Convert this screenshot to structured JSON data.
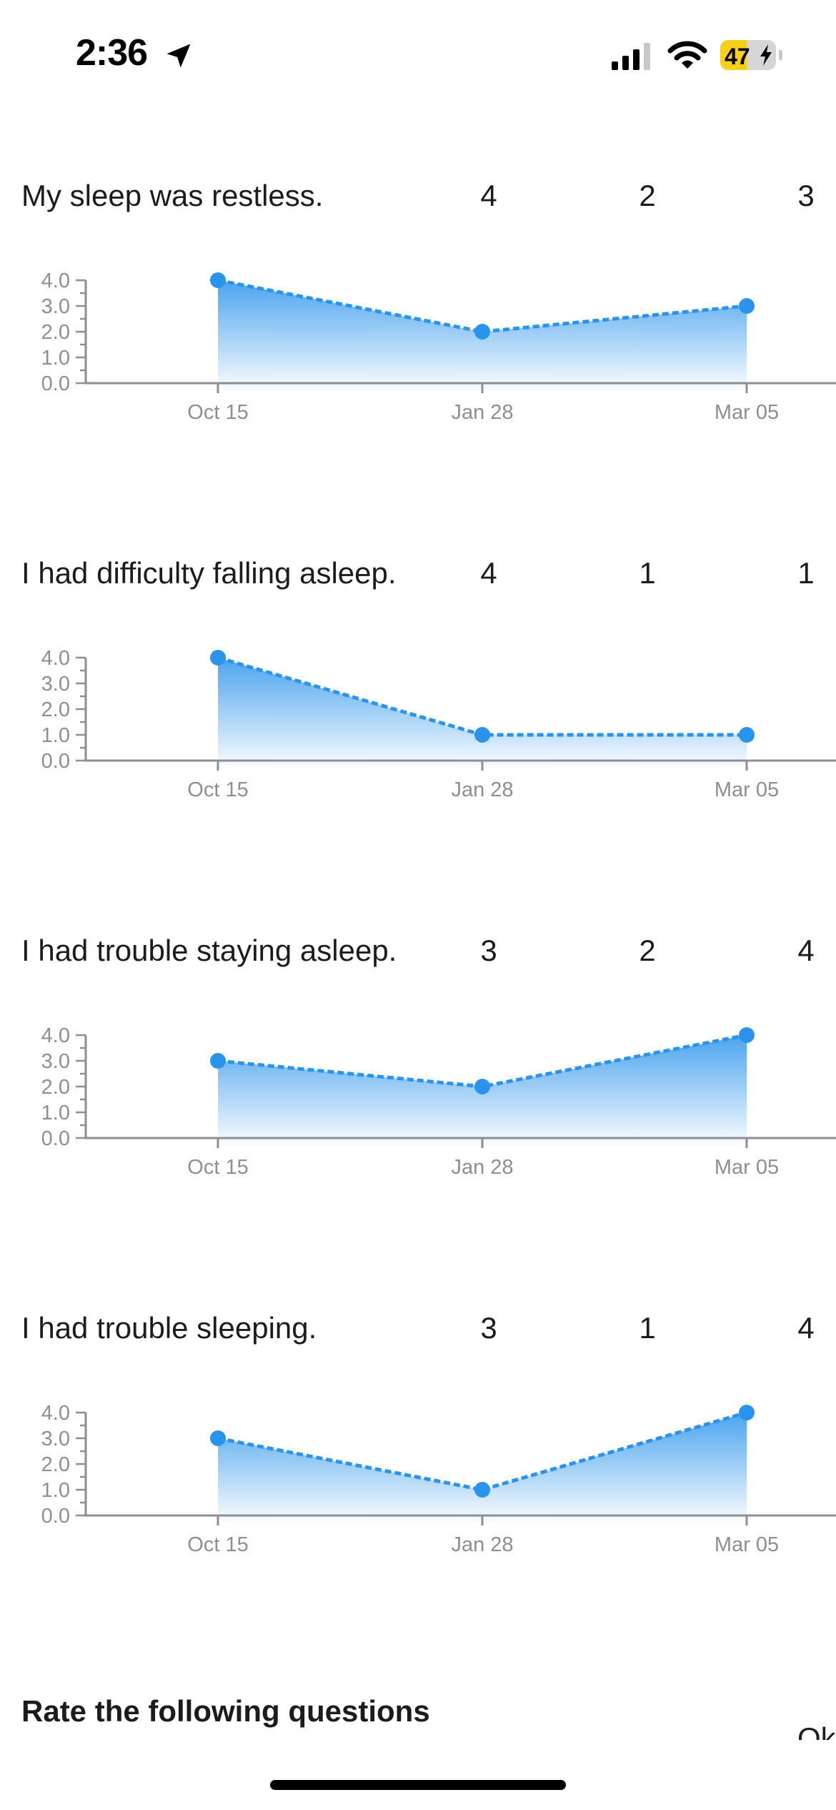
{
  "status_bar": {
    "time": "2:36",
    "battery_percent": 47,
    "battery_text": "47",
    "icons": [
      "location-arrow-icon",
      "cellular-signal-icon",
      "wifi-icon",
      "battery-icon",
      "charging-bolt-icon"
    ]
  },
  "colors": {
    "accent": "#2a93ec",
    "text": "#1c1c1e",
    "axis": "#8e8e93",
    "battery_fill": "#f7cf1a"
  },
  "questions": [
    {
      "text": "My sleep was restless.",
      "scores": [
        "4",
        "2",
        "3"
      ]
    },
    {
      "text": "I had difficulty falling asleep.",
      "scores": [
        "4",
        "1",
        "1"
      ]
    },
    {
      "text": "I had trouble staying asleep.",
      "scores": [
        "3",
        "2",
        "4"
      ]
    },
    {
      "text": "I had trouble sleeping.",
      "scores": [
        "3",
        "1",
        "4"
      ]
    }
  ],
  "chart_data": [
    {
      "type": "area",
      "x": [
        "Oct 15",
        "Jan 28",
        "Mar 05"
      ],
      "series": [
        {
          "values": [
            4,
            2,
            3
          ]
        }
      ],
      "ylim": [
        0,
        4
      ],
      "yticks": [
        "0.0",
        "1.0",
        "2.0",
        "3.0",
        "4.0"
      ],
      "line_style": "dashed",
      "grid": false
    },
    {
      "type": "area",
      "x": [
        "Oct 15",
        "Jan 28",
        "Mar 05"
      ],
      "series": [
        {
          "values": [
            4,
            1,
            1
          ]
        }
      ],
      "ylim": [
        0,
        4
      ],
      "yticks": [
        "0.0",
        "1.0",
        "2.0",
        "3.0",
        "4.0"
      ],
      "line_style": "dashed",
      "grid": false
    },
    {
      "type": "area",
      "x": [
        "Oct 15",
        "Jan 28",
        "Mar 05"
      ],
      "series": [
        {
          "values": [
            3,
            2,
            4
          ]
        }
      ],
      "ylim": [
        0,
        4
      ],
      "yticks": [
        "0.0",
        "1.0",
        "2.0",
        "3.0",
        "4.0"
      ],
      "line_style": "dashed",
      "grid": false
    },
    {
      "type": "area",
      "x": [
        "Oct 15",
        "Jan 28",
        "Mar 05"
      ],
      "series": [
        {
          "values": [
            3,
            1,
            4
          ]
        }
      ],
      "ylim": [
        0,
        4
      ],
      "yticks": [
        "0.0",
        "1.0",
        "2.0",
        "3.0",
        "4.0"
      ],
      "line_style": "dashed",
      "grid": false
    }
  ],
  "section": {
    "title": "Rate the following questions",
    "aside": "Ok"
  }
}
